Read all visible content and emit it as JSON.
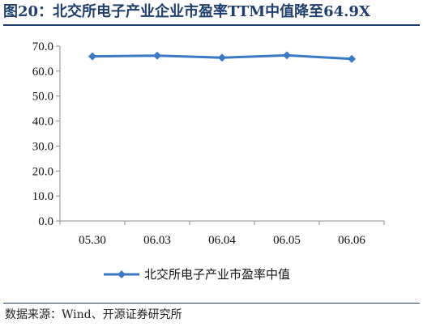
{
  "title": "图20：北交所电子产业企业市盈率TTM中值降至64.9X",
  "source": "数据来源：Wind、开源证券研究所",
  "chart_data": {
    "type": "line",
    "categories": [
      "05.30",
      "06.03",
      "06.04",
      "06.05",
      "06.06"
    ],
    "series": [
      {
        "name": "北交所电子产业市盈率中值",
        "values": [
          65.9,
          66.2,
          65.4,
          66.3,
          64.9
        ],
        "color": "#3a79c4",
        "marker": "diamond"
      }
    ],
    "ylim": [
      0,
      70
    ],
    "yticks": [
      "0.0",
      "10.0",
      "20.0",
      "30.0",
      "40.0",
      "50.0",
      "60.0",
      "70.0"
    ],
    "grid": false,
    "legend": "bottom"
  }
}
